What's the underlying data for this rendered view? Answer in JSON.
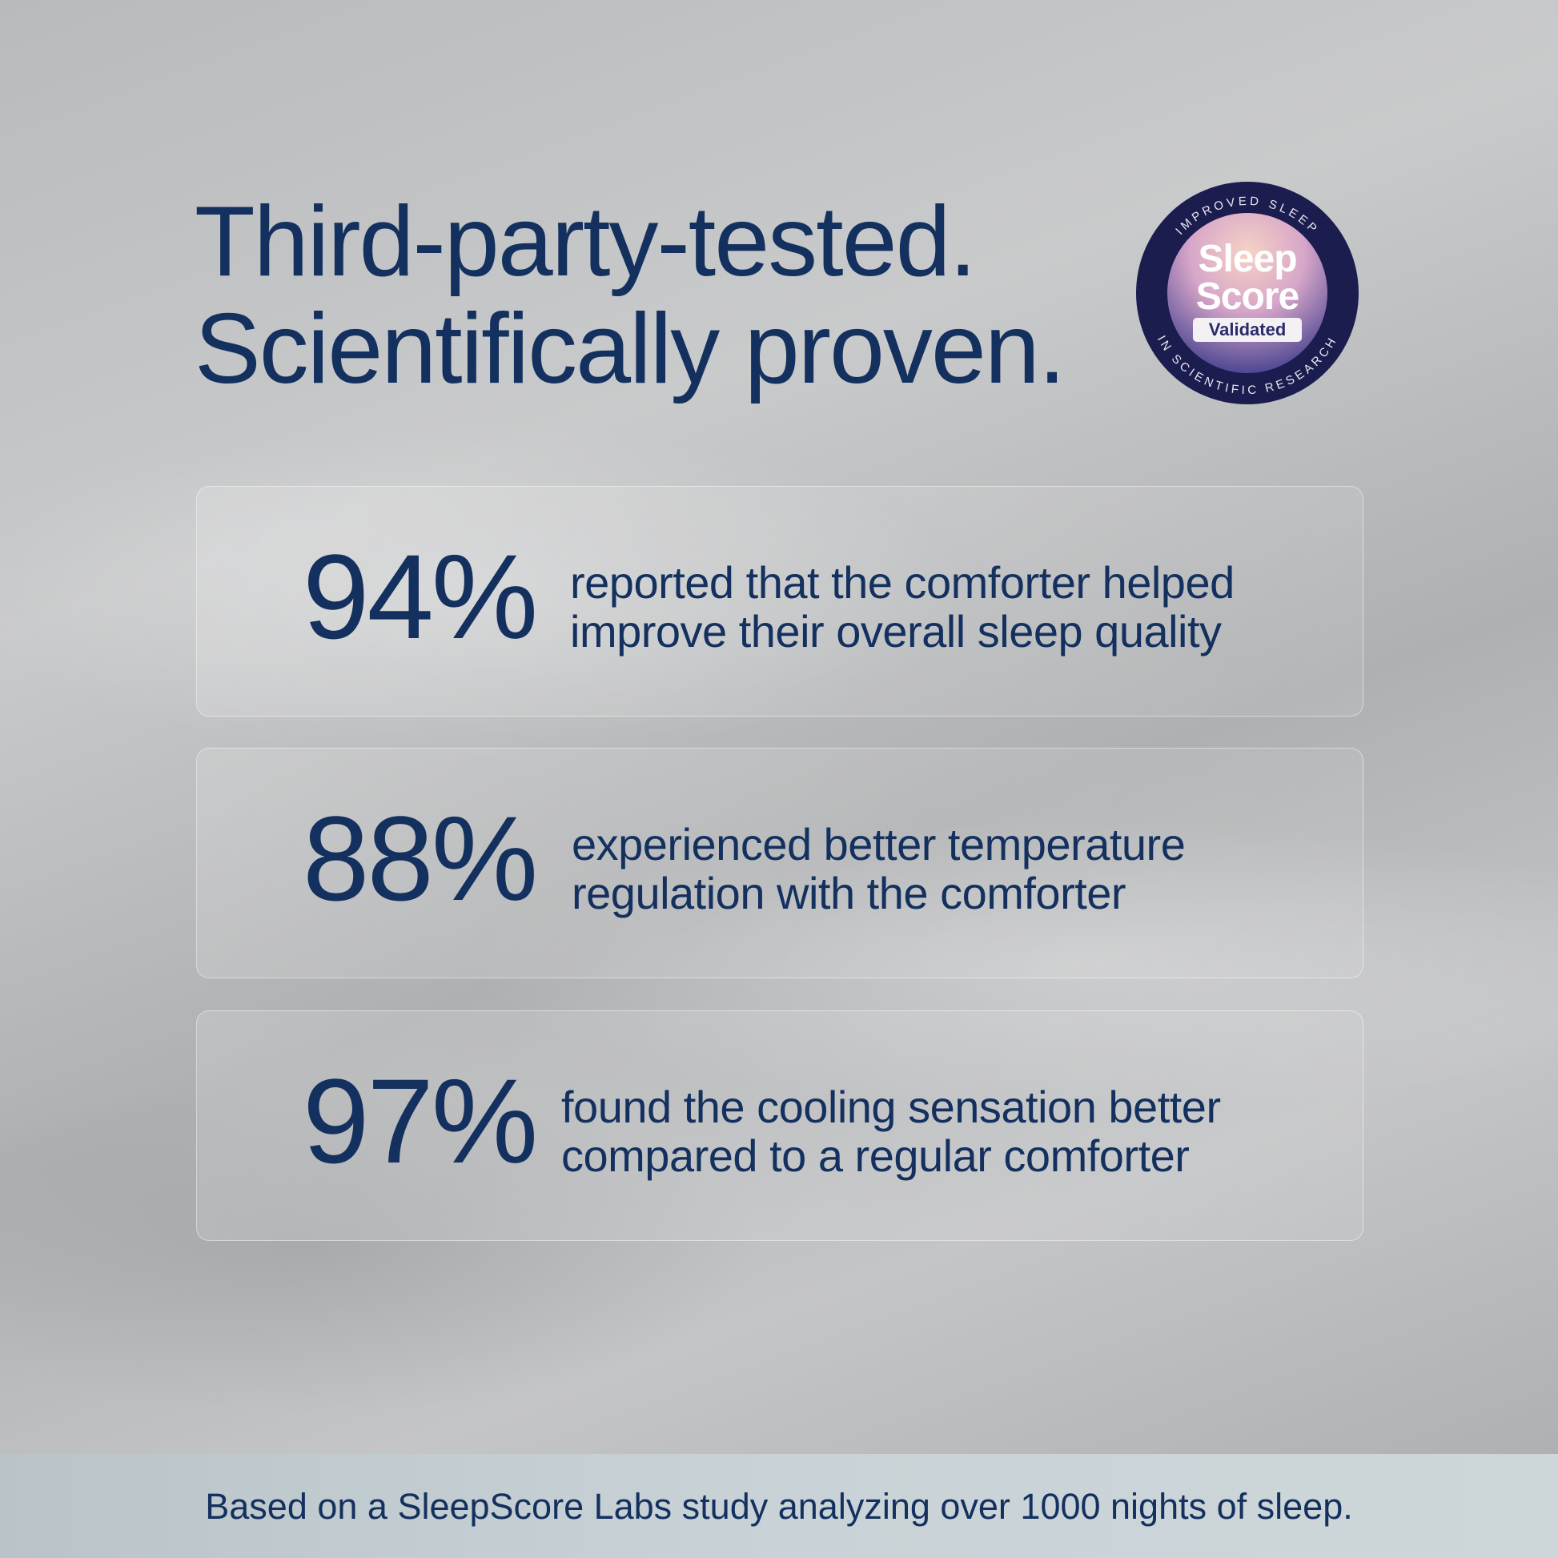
{
  "header": {
    "title_lines": [
      "Third-party-tested.",
      "Scientifically proven."
    ]
  },
  "badge": {
    "top_arc": "IMPROVED SLEEP",
    "bottom_arc": "IN SCIENTIFIC RESEARCH",
    "name_lines": [
      "Sleep",
      "Score"
    ],
    "tag": "Validated"
  },
  "stats": [
    {
      "value": "94%",
      "lines": [
        "reported that the comforter helped",
        "improve their overall sleep quality"
      ]
    },
    {
      "value": "88%",
      "lines": [
        "experienced better temperature",
        "regulation with the comforter"
      ]
    },
    {
      "value": "97%",
      "lines": [
        "found the cooling sensation better",
        "compared to a regular comforter"
      ]
    }
  ],
  "footer": {
    "note": "Based on a SleepScore Labs study analyzing over 1000 nights of sleep."
  }
}
